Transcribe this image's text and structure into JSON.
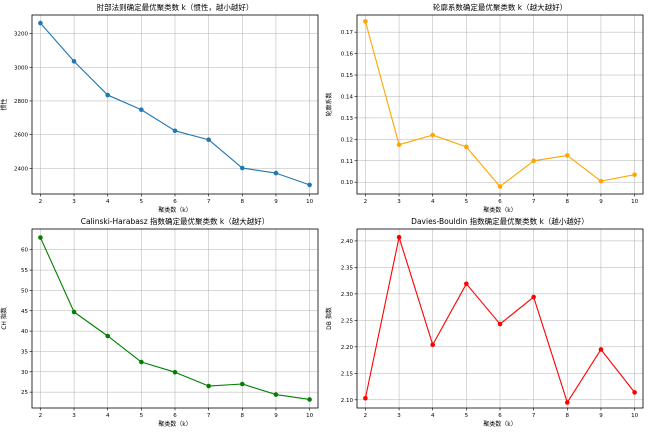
{
  "chart_data": [
    {
      "type": "line",
      "title": "肘部法则确定最优聚类数 k（惯性，越小越好）",
      "xlabel": "聚类数（k）",
      "ylabel": "惯性",
      "x": [
        2,
        3,
        4,
        5,
        6,
        7,
        8,
        9,
        10
      ],
      "series": [
        {
          "values": [
            3262,
            3035,
            2835,
            2748,
            2623,
            2570,
            2402,
            2372,
            2302
          ]
        }
      ],
      "xlim": [
        1.75,
        10.25
      ],
      "ylim": [
        2248,
        3310
      ],
      "xticks": [
        2,
        3,
        4,
        5,
        6,
        7,
        8,
        9,
        10
      ],
      "yticks": [
        2400,
        2600,
        2800,
        3000,
        3200
      ],
      "ytick_labels": [
        "2400",
        "2600",
        "2800",
        "3000",
        "3200"
      ],
      "color": "#1f77b4",
      "grid": true
    },
    {
      "type": "line",
      "title": "轮廓系数确定最优聚类数 k（越大越好）",
      "xlabel": "聚类数（k）",
      "ylabel": "轮廓系数",
      "x": [
        2,
        3,
        4,
        5,
        6,
        7,
        8,
        9,
        10
      ],
      "series": [
        {
          "values": [
            0.175,
            0.1175,
            0.122,
            0.1165,
            0.098,
            0.11,
            0.1125,
            0.1005,
            0.1035
          ]
        }
      ],
      "xlim": [
        1.75,
        10.25
      ],
      "ylim": [
        0.0945,
        0.178
      ],
      "xticks": [
        2,
        3,
        4,
        5,
        6,
        7,
        8,
        9,
        10
      ],
      "yticks": [
        0.1,
        0.11,
        0.12,
        0.13,
        0.14,
        0.15,
        0.16,
        0.17
      ],
      "ytick_labels": [
        "0.10",
        "0.11",
        "0.12",
        "0.13",
        "0.14",
        "0.15",
        "0.16",
        "0.17"
      ],
      "color": "#ffa500",
      "grid": true
    },
    {
      "type": "line",
      "title": "Calinski-Harabasz 指数确定最优聚类数 k（越大越好）",
      "xlabel": "聚类数（k）",
      "ylabel": "CH 指数",
      "x": [
        2,
        3,
        4,
        5,
        6,
        7,
        8,
        9,
        10
      ],
      "series": [
        {
          "values": [
            63.0,
            44.7,
            38.8,
            32.4,
            29.9,
            26.5,
            27.0,
            24.4,
            23.2
          ]
        }
      ],
      "xlim": [
        1.75,
        10.25
      ],
      "ylim": [
        21.1,
        65.1
      ],
      "xticks": [
        2,
        3,
        4,
        5,
        6,
        7,
        8,
        9,
        10
      ],
      "yticks": [
        25,
        30,
        35,
        40,
        45,
        50,
        55,
        60
      ],
      "ytick_labels": [
        "25",
        "30",
        "35",
        "40",
        "45",
        "50",
        "55",
        "60"
      ],
      "color": "#008000",
      "grid": true
    },
    {
      "type": "line",
      "title": "Davies-Bouldin 指数确定最优聚类数 k（越小越好）",
      "xlabel": "聚类数（k）",
      "ylabel": "DB 指数",
      "x": [
        2,
        3,
        4,
        5,
        6,
        7,
        8,
        9,
        10
      ],
      "series": [
        {
          "values": [
            2.103,
            2.407,
            2.204,
            2.319,
            2.243,
            2.294,
            2.095,
            2.195,
            2.114
          ]
        }
      ],
      "xlim": [
        1.75,
        10.25
      ],
      "ylim": [
        2.0845,
        2.4225
      ],
      "xticks": [
        2,
        3,
        4,
        5,
        6,
        7,
        8,
        9,
        10
      ],
      "yticks": [
        2.1,
        2.15,
        2.2,
        2.25,
        2.3,
        2.35,
        2.4
      ],
      "ytick_labels": [
        "2.10",
        "2.15",
        "2.20",
        "2.25",
        "2.30",
        "2.35",
        "2.40"
      ],
      "color": "#ff0000",
      "grid": true
    }
  ]
}
